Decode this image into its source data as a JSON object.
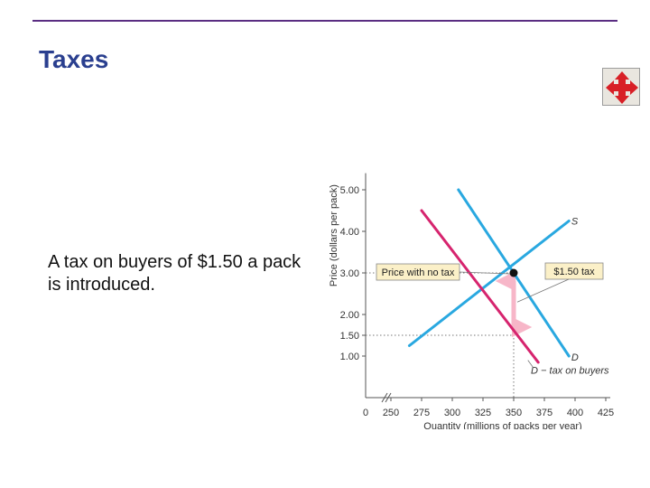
{
  "slide": {
    "title": "Taxes",
    "body": "A tax on buyers of $1.50 a pack is introduced."
  },
  "nav_button": {
    "icon": "move-arrows-icon",
    "color": "#d81f26"
  },
  "chart_data": {
    "type": "line",
    "xlabel": "Quantity (millions of packs per year)",
    "ylabel": "Price (dollars per pack)",
    "xlim": [
      225,
      425
    ],
    "ylim": [
      0,
      5.4
    ],
    "x_origin_label": "0",
    "x_axis_break": true,
    "xticks": [
      250,
      275,
      300,
      325,
      350,
      375,
      400,
      425
    ],
    "xtick_labels": [
      "250",
      "275",
      "300",
      "325",
      "350",
      "375",
      "400",
      "425"
    ],
    "yticks": [
      1.0,
      1.5,
      2.0,
      3.0,
      4.0,
      5.0
    ],
    "ytick_labels": [
      "1.00",
      "1.50",
      "2.00",
      "3.00",
      "4.00",
      "5.00"
    ],
    "series": [
      {
        "name": "S",
        "color": "#29a8e0",
        "points": [
          [
            265,
            1.25
          ],
          [
            395,
            4.25
          ]
        ]
      },
      {
        "name": "D",
        "color": "#29a8e0",
        "points": [
          [
            305,
            5.0
          ],
          [
            395,
            1.0
          ]
        ]
      },
      {
        "name": "D − tax on buyers",
        "color": "#d6246e",
        "points": [
          [
            275,
            4.5
          ],
          [
            370,
            0.85
          ]
        ]
      }
    ],
    "equilibrium": {
      "x": 350,
      "y": 3.0
    },
    "guides": [
      {
        "from": [
          225,
          3.0
        ],
        "to": [
          350,
          3.0
        ]
      },
      {
        "from": [
          225,
          1.5
        ],
        "to": [
          350,
          1.5
        ]
      },
      {
        "from": [
          350,
          3.0
        ],
        "to": [
          350,
          0
        ]
      }
    ],
    "tax_arrow": {
      "x": 350,
      "from": 3.0,
      "to": 1.5,
      "color": "#f7b6c8"
    },
    "annotations": [
      {
        "text": "Price with no tax",
        "target": [
          350,
          3.0
        ]
      },
      {
        "text": "$1.50 tax",
        "target": [
          350,
          2.3
        ]
      }
    ],
    "curve_labels": {
      "S": "S",
      "D": "D",
      "D_tax": "D − tax on buyers"
    }
  }
}
